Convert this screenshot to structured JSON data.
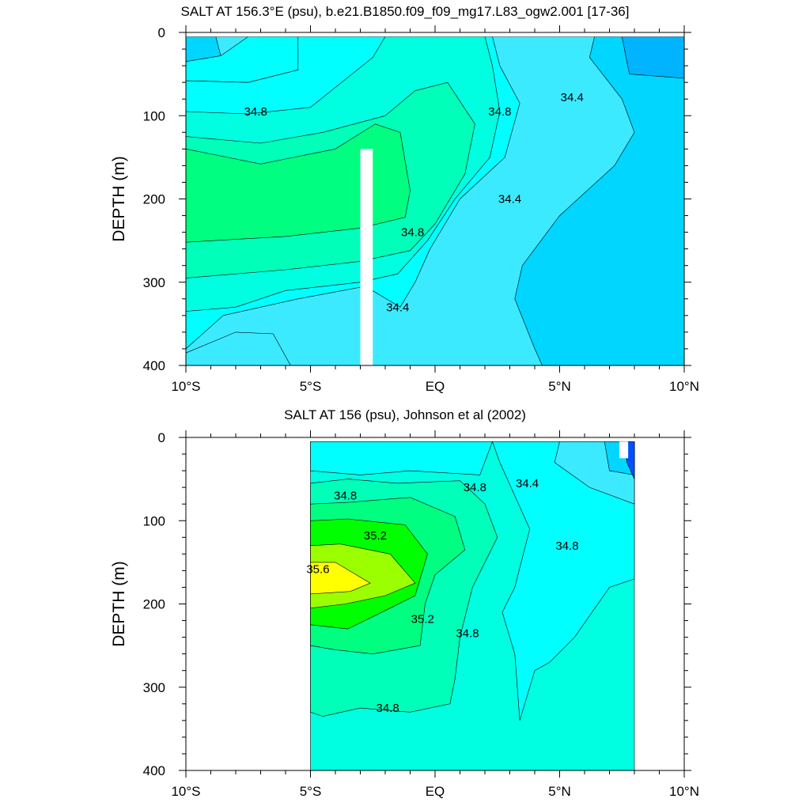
{
  "colors": {
    "levels": [
      "#00b4ff",
      "#00d6ff",
      "#3ceaff",
      "#00ffff",
      "#00ffe0",
      "#00ffb8",
      "#00ff80",
      "#00ff00",
      "#9cff00",
      "#ffff00"
    ],
    "thresholds": [
      34.2,
      34.3,
      34.4,
      34.5,
      34.6,
      34.8,
      35.0,
      35.2,
      35.4,
      35.6
    ],
    "deep_blue": "#0050ff",
    "mask": "#ffffff",
    "contour_line": "#000000"
  },
  "chart_data": [
    {
      "type": "contour",
      "title": "SALT AT 156.3°E (psu), b.e21.B1850.f09_f09_mg17.L83_ogw2.001 [17-36]",
      "xlabel": "",
      "ylabel": "DEPTH (m)",
      "x_ticks": [
        "10°S",
        "5°S",
        "EQ",
        "5°N",
        "10°N"
      ],
      "y_ticks": [
        "0",
        "100",
        "200",
        "300",
        "400"
      ],
      "xlim": [
        -10,
        10
      ],
      "ylim": [
        400,
        0
      ],
      "data_extent": {
        "lat": [
          -10,
          10
        ],
        "depth": [
          5,
          400
        ]
      },
      "missing_strip": {
        "lat": [
          -3.0,
          -2.5
        ],
        "depth": [
          140,
          400
        ]
      },
      "contour_labels": [
        {
          "text": "34.8",
          "lat": -7.2,
          "depth": 95
        },
        {
          "text": "34.8",
          "lat": 2.6,
          "depth": 95
        },
        {
          "text": "34.4",
          "lat": 5.5,
          "depth": 78
        },
        {
          "text": "34.4",
          "lat": 3.0,
          "depth": 200
        },
        {
          "text": "34.8",
          "lat": -0.9,
          "depth": 240
        },
        {
          "text": "34.4",
          "lat": -1.5,
          "depth": 330
        }
      ],
      "regions": [
        {
          "level": 34.4,
          "desc": "surface west"
        },
        {
          "level": 34.6,
          "desc": "upper central"
        },
        {
          "level": 34.8,
          "desc": "main tongue"
        },
        {
          "level": 35.0,
          "desc": "core"
        },
        {
          "level": 34.3,
          "desc": "deep east"
        }
      ]
    },
    {
      "type": "contour",
      "title": "SALT AT 156 (psu), Johnson et al (2002)",
      "xlabel": "",
      "ylabel": "DEPTH (m)",
      "x_ticks": [
        "10°S",
        "5°S",
        "EQ",
        "5°N",
        "10°N"
      ],
      "y_ticks": [
        "0",
        "100",
        "200",
        "300",
        "400"
      ],
      "xlim": [
        -10,
        10
      ],
      "ylim": [
        400,
        0
      ],
      "data_extent": {
        "lat": [
          -5,
          8
        ],
        "depth": [
          5,
          400
        ]
      },
      "contour_labels": [
        {
          "text": "34.8",
          "lat": -3.6,
          "depth": 70
        },
        {
          "text": "34.8",
          "lat": 1.6,
          "depth": 60
        },
        {
          "text": "34.4",
          "lat": 3.7,
          "depth": 55
        },
        {
          "text": "34.8",
          "lat": 5.3,
          "depth": 130
        },
        {
          "text": "35.2",
          "lat": -2.4,
          "depth": 118
        },
        {
          "text": "35.6",
          "lat": -4.7,
          "depth": 158
        },
        {
          "text": "35.2",
          "lat": -0.5,
          "depth": 218
        },
        {
          "text": "34.8",
          "lat": 1.3,
          "depth": 235
        },
        {
          "text": "34.8",
          "lat": -1.9,
          "depth": 325
        }
      ]
    }
  ]
}
